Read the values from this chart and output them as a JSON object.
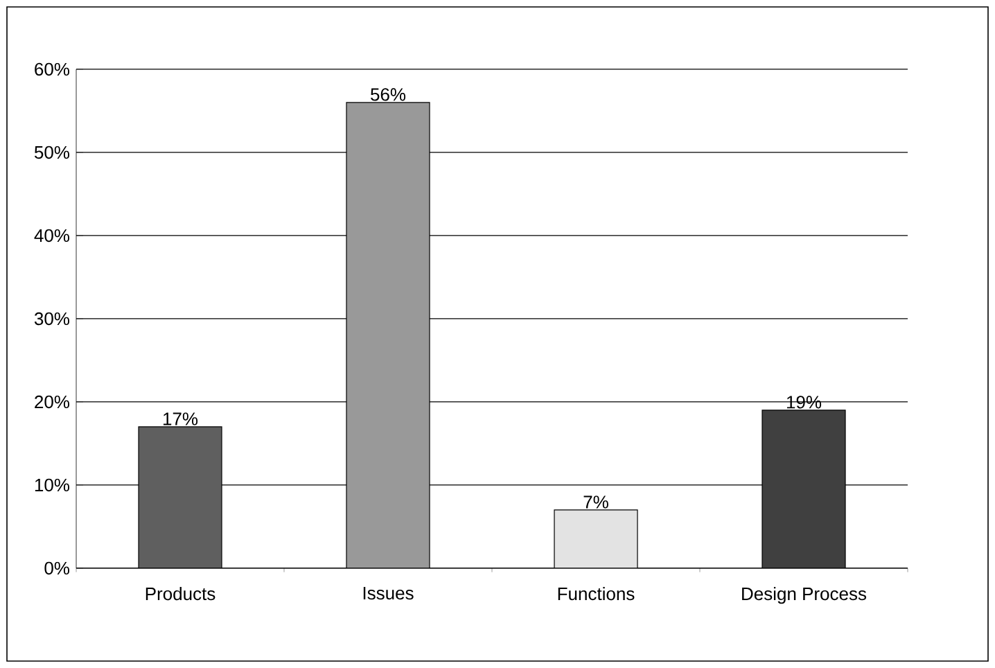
{
  "chart_data": {
    "type": "bar",
    "categories": [
      "Products",
      "Issues",
      "Functions",
      "Design Process"
    ],
    "values": [
      17,
      56,
      7,
      19
    ],
    "colors": [
      "#5f5f5f",
      "#999999",
      "#e3e3e3",
      "#404040"
    ],
    "value_labels": [
      "17%",
      "56%",
      "7%",
      "19%"
    ],
    "ylim": [
      0,
      60
    ],
    "yticks": [
      {
        "value": 0,
        "label": "0%"
      },
      {
        "value": 10,
        "label": "10%"
      },
      {
        "value": 20,
        "label": "20%"
      },
      {
        "value": 30,
        "label": "30%"
      },
      {
        "value": 40,
        "label": "40%"
      },
      {
        "value": 50,
        "label": "50%"
      },
      {
        "value": 60,
        "label": "60%"
      }
    ],
    "grid": "y"
  }
}
